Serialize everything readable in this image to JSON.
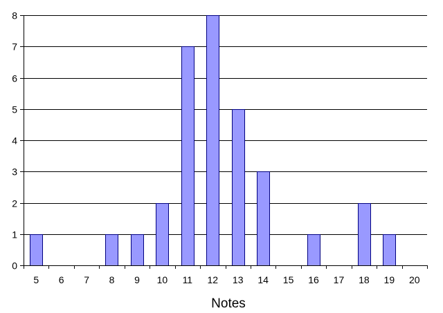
{
  "chart_data": {
    "type": "bar",
    "title": "",
    "xlabel": "Notes",
    "ylabel": "",
    "categories": [
      "5",
      "6",
      "7",
      "8",
      "9",
      "10",
      "11",
      "12",
      "13",
      "14",
      "15",
      "16",
      "17",
      "18",
      "19",
      "20"
    ],
    "values": [
      1,
      0,
      0,
      1,
      1,
      2,
      7,
      8,
      5,
      3,
      0,
      1,
      0,
      2,
      1,
      0
    ],
    "ylim": [
      0,
      8
    ],
    "yticks": [
      "0",
      "1",
      "2",
      "3",
      "4",
      "5",
      "6",
      "7",
      "8"
    ],
    "grid": true,
    "legend": "none",
    "bar_color": "#9999ff",
    "bar_edge_color": "#000080"
  }
}
